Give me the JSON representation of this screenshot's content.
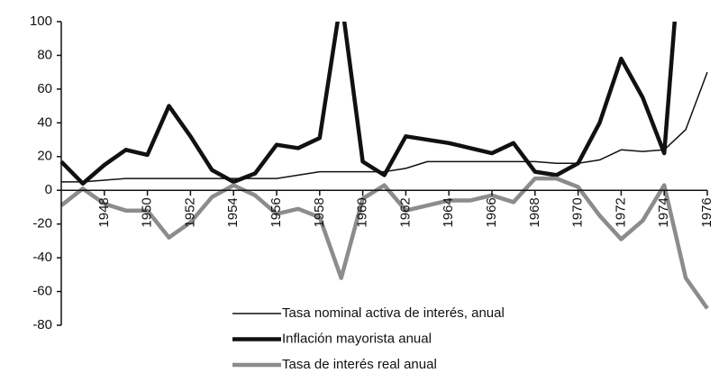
{
  "chart_data": {
    "type": "line",
    "x": [
      1946,
      1947,
      1948,
      1949,
      1950,
      1951,
      1952,
      1953,
      1954,
      1955,
      1956,
      1957,
      1958,
      1959,
      1960,
      1961,
      1962,
      1963,
      1964,
      1965,
      1966,
      1967,
      1968,
      1969,
      1970,
      1971,
      1972,
      1973,
      1974,
      1975,
      1976
    ],
    "series": [
      {
        "name": "Tasa nominal activa de interés, anual",
        "color": "#111111",
        "width": 1.5,
        "values": [
          5,
          5,
          6,
          7,
          7,
          7,
          7,
          7,
          7,
          7,
          7,
          9,
          11,
          11,
          11,
          11,
          13,
          17,
          17,
          17,
          17,
          17,
          17,
          16,
          16,
          18,
          24,
          23,
          24,
          36,
          70
        ]
      },
      {
        "name": "Inflación mayorista anual",
        "color": "#111111",
        "width": 4.5,
        "values": [
          17,
          4,
          15,
          24,
          21,
          50,
          32,
          12,
          5,
          10,
          27,
          25,
          31,
          114,
          17,
          9,
          32,
          30,
          28,
          25,
          22,
          28,
          11,
          9,
          16,
          40,
          78,
          55,
          22,
          183,
          null
        ]
      },
      {
        "name": "Tasa de interés real anual",
        "color": "#8c8c8c",
        "width": 4.5,
        "values": [
          -9,
          1,
          -8,
          -12,
          -12,
          -28,
          -19,
          -4,
          3,
          -3,
          -14,
          -11,
          -16,
          -52,
          -5,
          3,
          -12,
          -9,
          -6,
          -6,
          -3,
          -7,
          7,
          7,
          2,
          -15,
          -29,
          -18,
          3,
          -52,
          -70
        ]
      }
    ],
    "xlim": [
      1946,
      1976
    ],
    "xticks": [
      1948,
      1950,
      1952,
      1954,
      1956,
      1958,
      1960,
      1962,
      1964,
      1966,
      1968,
      1970,
      1972,
      1974,
      1976
    ],
    "ylim": [
      -80,
      100
    ],
    "yticks": [
      -80,
      -60,
      -40,
      -20,
      0,
      20,
      40,
      60,
      80,
      100
    ]
  }
}
